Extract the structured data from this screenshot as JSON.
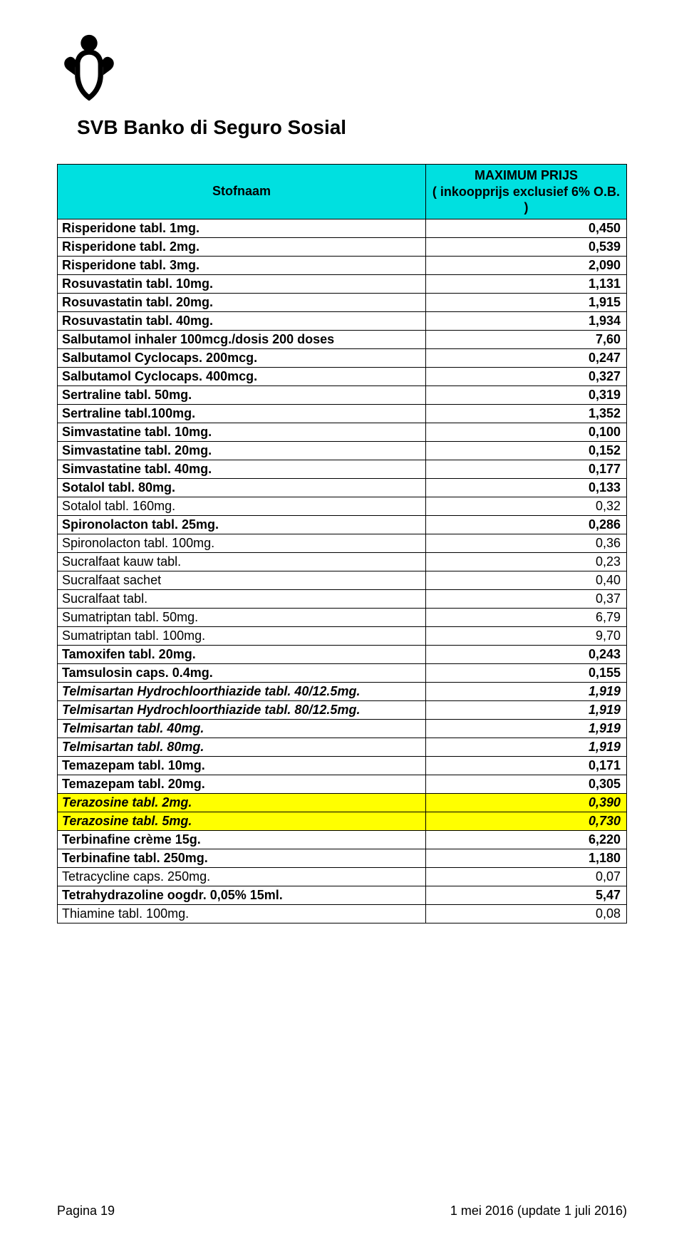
{
  "logo_name": "human-figure-shield-logo",
  "title": "SVB  Banko di Seguro Sosial",
  "header": {
    "col1": "Stofnaam",
    "col2_line1": "MAXIMUM PRIJS",
    "col2_line2": "( inkoopprijs exclusief 6% O.B. )"
  },
  "colors": {
    "header_bg": "#00e0e0",
    "highlight_bg": "#ffff00",
    "border": "#000000",
    "page_bg": "#ffffff",
    "text": "#000000"
  },
  "rows": [
    {
      "name": "Risperidone tabl. 1mg.",
      "price": "0,450",
      "bold": true,
      "italic": false,
      "hl": false
    },
    {
      "name": "Risperidone tabl. 2mg.",
      "price": "0,539",
      "bold": true,
      "italic": false,
      "hl": false
    },
    {
      "name": "Risperidone tabl. 3mg.",
      "price": "2,090",
      "bold": true,
      "italic": false,
      "hl": false
    },
    {
      "name": "Rosuvastatin tabl. 10mg.",
      "price": "1,131",
      "bold": true,
      "italic": false,
      "hl": false
    },
    {
      "name": "Rosuvastatin tabl. 20mg.",
      "price": "1,915",
      "bold": true,
      "italic": false,
      "hl": false
    },
    {
      "name": "Rosuvastatin tabl. 40mg.",
      "price": "1,934",
      "bold": true,
      "italic": false,
      "hl": false
    },
    {
      "name": "Salbutamol inhaler 100mcg./dosis 200 doses",
      "price": "7,60",
      "bold": true,
      "italic": false,
      "hl": false
    },
    {
      "name": "Salbutamol Cyclocaps. 200mcg.",
      "price": "0,247",
      "bold": true,
      "italic": false,
      "hl": false
    },
    {
      "name": "Salbutamol Cyclocaps. 400mcg.",
      "price": "0,327",
      "bold": true,
      "italic": false,
      "hl": false
    },
    {
      "name": "Sertraline tabl. 50mg.",
      "price": "0,319",
      "bold": true,
      "italic": false,
      "hl": false
    },
    {
      "name": "Sertraline tabl.100mg.",
      "price": "1,352",
      "bold": true,
      "italic": false,
      "hl": false
    },
    {
      "name": "Simvastatine tabl. 10mg.",
      "price": "0,100",
      "bold": true,
      "italic": false,
      "hl": false
    },
    {
      "name": "Simvastatine tabl. 20mg.",
      "price": "0,152",
      "bold": true,
      "italic": false,
      "hl": false
    },
    {
      "name": "Simvastatine tabl. 40mg.",
      "price": "0,177",
      "bold": true,
      "italic": false,
      "hl": false
    },
    {
      "name": "Sotalol tabl.   80mg.",
      "price": "0,133",
      "bold": true,
      "italic": false,
      "hl": false
    },
    {
      "name": "Sotalol tabl. 160mg.",
      "price": "0,32",
      "bold": false,
      "italic": false,
      "hl": false
    },
    {
      "name": "Spironolacton tabl.  25mg.",
      "price": "0,286",
      "bold": true,
      "italic": false,
      "hl": false
    },
    {
      "name": "Spironolacton tabl. 100mg.",
      "price": "0,36",
      "bold": false,
      "italic": false,
      "hl": false
    },
    {
      "name": "Sucralfaat kauw tabl.",
      "price": "0,23",
      "bold": false,
      "italic": false,
      "hl": false
    },
    {
      "name": "Sucralfaat sachet",
      "price": "0,40",
      "bold": false,
      "italic": false,
      "hl": false
    },
    {
      "name": "Sucralfaat tabl.",
      "price": "0,37",
      "bold": false,
      "italic": false,
      "hl": false
    },
    {
      "name": "Sumatriptan tabl.    50mg.",
      "price": "6,79",
      "bold": false,
      "italic": false,
      "hl": false
    },
    {
      "name": "Sumatriptan tabl. 100mg.",
      "price": "9,70",
      "bold": false,
      "italic": false,
      "hl": false
    },
    {
      "name": "Tamoxifen tabl. 20mg.",
      "price": "0,243",
      "bold": true,
      "italic": false,
      "hl": false
    },
    {
      "name": "Tamsulosin caps. 0.4mg.",
      "price": "0,155",
      "bold": true,
      "italic": false,
      "hl": false
    },
    {
      "name": "Telmisartan Hydrochloorthiazide tabl. 40/12.5mg.",
      "price": "1,919",
      "bold": true,
      "italic": true,
      "hl": false
    },
    {
      "name": "Telmisartan Hydrochloorthiazide tabl. 80/12.5mg.",
      "price": "1,919",
      "bold": true,
      "italic": true,
      "hl": false
    },
    {
      "name": "Telmisartan tabl. 40mg.",
      "price": "1,919",
      "bold": true,
      "italic": true,
      "hl": false
    },
    {
      "name": "Telmisartan tabl. 80mg.",
      "price": "1,919",
      "bold": true,
      "italic": true,
      "hl": false
    },
    {
      "name": "Temazepam tabl. 10mg.",
      "price": "0,171",
      "bold": true,
      "italic": false,
      "hl": false
    },
    {
      "name": "Temazepam tabl. 20mg.",
      "price": "0,305",
      "bold": true,
      "italic": false,
      "hl": false
    },
    {
      "name": "Terazosine tabl. 2mg.",
      "price": "0,390",
      "bold": true,
      "italic": true,
      "hl": true
    },
    {
      "name": "Terazosine tabl. 5mg.",
      "price": "0,730",
      "bold": true,
      "italic": true,
      "hl": true
    },
    {
      "name": "Terbinafine crème 15g.",
      "price": "6,220",
      "bold": true,
      "italic": false,
      "hl": false
    },
    {
      "name": "Terbinafine tabl. 250mg.",
      "price": "1,180",
      "bold": true,
      "italic": false,
      "hl": false
    },
    {
      "name": "Tetracycline caps. 250mg.",
      "price": "0,07",
      "bold": false,
      "italic": false,
      "hl": false
    },
    {
      "name": "Tetrahydrazoline oogdr. 0,05% 15ml.",
      "price": "5,47",
      "bold": true,
      "italic": false,
      "hl": false
    },
    {
      "name": "Thiamine tabl. 100mg.",
      "price": "0,08",
      "bold": false,
      "italic": false,
      "hl": false
    }
  ],
  "footer": {
    "page": "Pagina 19",
    "date": "1 mei 2016 (update 1 juli 2016)"
  }
}
